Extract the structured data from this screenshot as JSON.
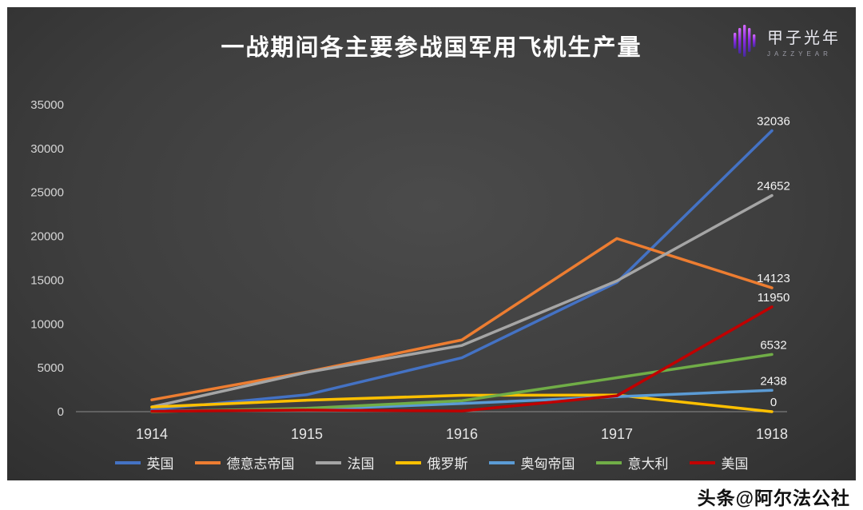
{
  "title": "一战期间各主要参战国军用飞机生产量",
  "logo": {
    "name": "甲子光年",
    "subtitle": "JAZZYEAR"
  },
  "watermark": "头条@阿尔法公社",
  "chart_data": {
    "type": "line",
    "title": "一战期间各主要参战国军用飞机生产量",
    "categories": [
      "1914",
      "1915",
      "1916",
      "1917",
      "1918"
    ],
    "series": [
      {
        "name": "英国",
        "color": "#4472C4",
        "values": [
          245,
          1933,
          6149,
          14748,
          32036
        ]
      },
      {
        "name": "德意志帝国",
        "color": "#ED7D31",
        "values": [
          1348,
          4532,
          8182,
          19746,
          14123
        ]
      },
      {
        "name": "法国",
        "color": "#A5A5A5",
        "values": [
          541,
          4489,
          7549,
          14915,
          24652
        ]
      },
      {
        "name": "俄罗斯",
        "color": "#FFC000",
        "values": [
          535,
          1305,
          1870,
          1897,
          0
        ]
      },
      {
        "name": "奥匈帝国",
        "color": "#5B9BD5",
        "values": [
          70,
          238,
          931,
          1714,
          2438
        ]
      },
      {
        "name": "意大利",
        "color": "#70AD47",
        "values": [
          0,
          382,
          1255,
          3871,
          6532
        ]
      },
      {
        "name": "美国",
        "color": "#C00000",
        "values": [
          49,
          178,
          83,
          1807,
          11950
        ]
      }
    ],
    "end_labels": [
      "32036",
      "24652",
      "14123",
      "11950",
      "6532",
      "2438",
      "0"
    ],
    "xlabel": "",
    "ylabel": "",
    "ylim": [
      0,
      35000
    ],
    "ytick_step": 5000,
    "yticks": [
      "0",
      "5000",
      "10000",
      "15000",
      "20000",
      "25000",
      "30000",
      "35000"
    ],
    "grid": false,
    "legend_position": "bottom",
    "background": "#3e3e3e"
  }
}
